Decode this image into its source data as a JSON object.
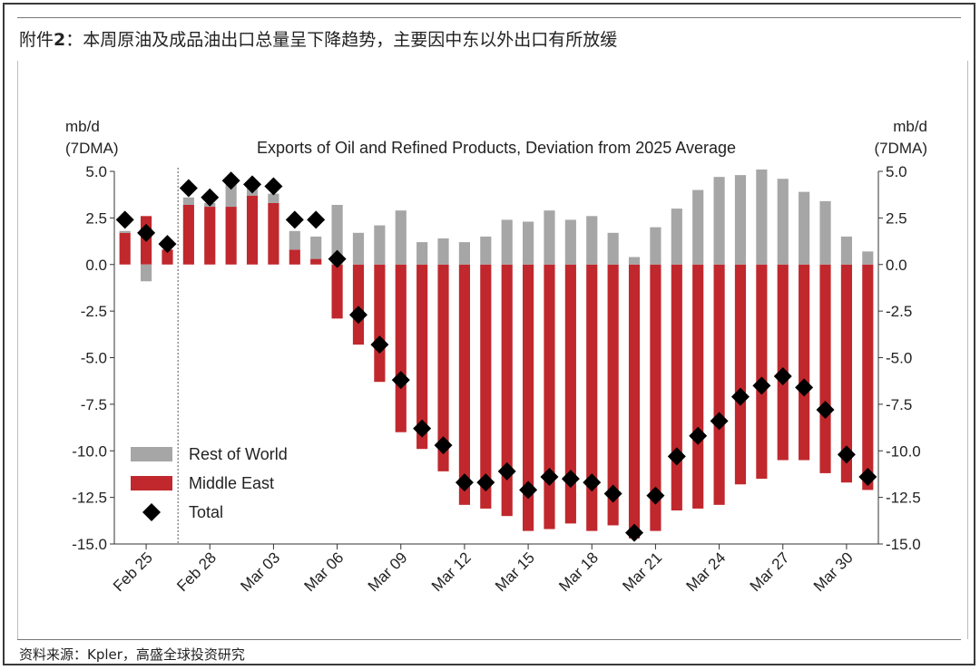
{
  "heading": {
    "prefix": "附件",
    "number": "2",
    "text": "：本周原油及成品油出口总量呈下降趋势，主要因中东以外出口有所放缓"
  },
  "source": "资料来源：Kpler，高盛全球投资研究",
  "chart_data": {
    "type": "bar",
    "title": "Exports of Oil and Refined Products, Deviation from 2025 Average",
    "ylabel_left": [
      "mb/d",
      "(7DMA)"
    ],
    "ylabel_right": [
      "mb/d",
      "(7DMA)"
    ],
    "ylim": [
      -15,
      5
    ],
    "yticks": [
      5.0,
      2.5,
      0.0,
      -2.5,
      -5.0,
      -7.5,
      -10.0,
      -12.5,
      -15.0
    ],
    "ytick_labels": [
      "5.0",
      "2.5",
      "0.0",
      "-2.5",
      "-5.0",
      "-7.5",
      "-10.0",
      "-12.5",
      "-15.0"
    ],
    "categories": [
      "Feb 24",
      "Feb 25",
      "Feb 26",
      "Feb 27",
      "Feb 28",
      "Mar 01",
      "Mar 02",
      "Mar 03",
      "Mar 04",
      "Mar 05",
      "Mar 06",
      "Mar 07",
      "Mar 08",
      "Mar 09",
      "Mar 10",
      "Mar 11",
      "Mar 12",
      "Mar 13",
      "Mar 14",
      "Mar 15",
      "Mar 16",
      "Mar 17",
      "Mar 18",
      "Mar 19",
      "Mar 20",
      "Mar 21",
      "Mar 22",
      "Mar 23",
      "Mar 24",
      "Mar 25",
      "Mar 26",
      "Mar 27",
      "Mar 28",
      "Mar 29",
      "Mar 30",
      "Mar 31"
    ],
    "xtick_labels": [
      {
        "index": 1,
        "label": "Feb 25"
      },
      {
        "index": 4,
        "label": "Feb 28"
      },
      {
        "index": 7,
        "label": "Mar 03"
      },
      {
        "index": 10,
        "label": "Mar 06"
      },
      {
        "index": 13,
        "label": "Mar 09"
      },
      {
        "index": 16,
        "label": "Mar 12"
      },
      {
        "index": 19,
        "label": "Mar 15"
      },
      {
        "index": 22,
        "label": "Mar 18"
      },
      {
        "index": 25,
        "label": "Mar 21"
      },
      {
        "index": 28,
        "label": "Mar 24"
      },
      {
        "index": 31,
        "label": "Mar 27"
      },
      {
        "index": 34,
        "label": "Mar 30"
      }
    ],
    "divider_after_index": 2.5,
    "series": [
      {
        "name": "Rest of World",
        "type": "stacked-bar",
        "color": "#a6a6a6",
        "values": [
          0.1,
          -0.9,
          0.0,
          0.4,
          0.2,
          1.2,
          0.5,
          0.5,
          1.0,
          1.2,
          3.2,
          1.7,
          2.1,
          2.9,
          1.2,
          1.4,
          1.2,
          1.5,
          2.4,
          2.3,
          2.9,
          2.4,
          2.6,
          1.7,
          0.4,
          2.0,
          3.0,
          4.0,
          4.7,
          4.8,
          5.1,
          4.6,
          3.9,
          3.4,
          1.5,
          0.7
        ]
      },
      {
        "name": "Middle East",
        "type": "stacked-bar",
        "color": "#c0282d",
        "values": [
          1.7,
          2.6,
          0.8,
          3.2,
          3.1,
          3.1,
          3.7,
          3.3,
          0.8,
          0.3,
          -2.9,
          -4.3,
          -6.3,
          -9.0,
          -9.9,
          -11.1,
          -12.9,
          -13.1,
          -13.5,
          -14.3,
          -14.2,
          -13.9,
          -14.3,
          -14.0,
          -14.7,
          -14.3,
          -13.2,
          -13.1,
          -12.9,
          -11.8,
          -11.5,
          -10.5,
          -10.5,
          -11.2,
          -11.7,
          -12.1
        ]
      },
      {
        "name": "Total",
        "type": "scatter",
        "color": "#000000",
        "marker": "diamond",
        "values": [
          2.4,
          1.7,
          1.1,
          4.1,
          3.6,
          4.5,
          4.3,
          4.2,
          2.4,
          2.4,
          0.3,
          -2.7,
          -4.3,
          -6.2,
          -8.8,
          -9.7,
          -11.7,
          -11.7,
          -11.1,
          -12.1,
          -11.4,
          -11.5,
          -11.7,
          -12.3,
          -14.4,
          -12.4,
          -10.3,
          -9.2,
          -8.4,
          -7.1,
          -6.5,
          -6.0,
          -6.6,
          -7.8,
          -10.2,
          -11.4
        ]
      }
    ],
    "legend": {
      "placement": "bottom-left",
      "items": [
        {
          "label": "Rest of World",
          "symbol": "bar",
          "color": "#a6a6a6"
        },
        {
          "label": "Middle East",
          "symbol": "bar",
          "color": "#c0282d"
        },
        {
          "label": "Total",
          "symbol": "diamond",
          "color": "#000000"
        }
      ]
    }
  }
}
